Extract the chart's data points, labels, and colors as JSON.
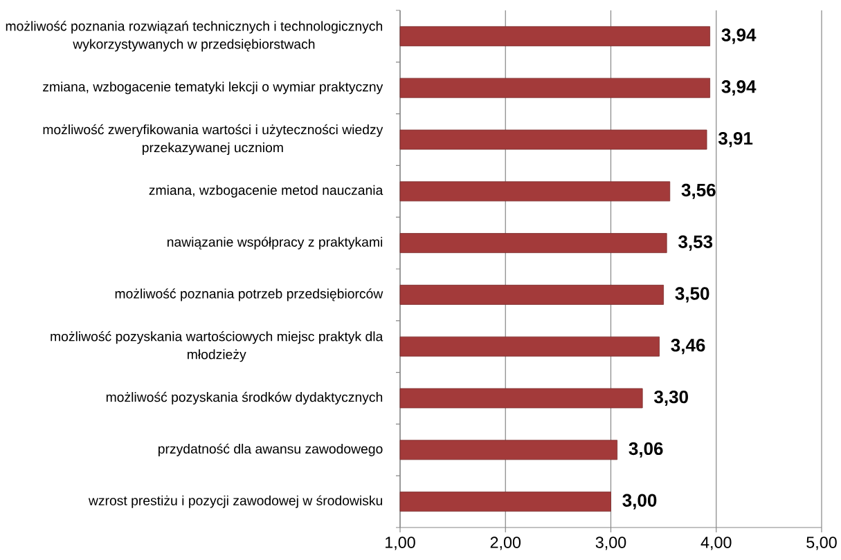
{
  "chart_data": {
    "type": "bar",
    "orientation": "horizontal",
    "categories": [
      "możliwość poznania rozwiązań technicznych i technologicznych wykorzystywanych w przedsiębiorstwach",
      "zmiana, wzbogacenie tematyki lekcji o wymiar praktyczny",
      "możliwość zweryfikowania wartości i użyteczności wiedzy przekazywanej uczniom",
      "zmiana, wzbogacenie metod nauczania",
      "nawiązanie współpracy z praktykami",
      "możliwość poznania potrzeb przedsiębiorców",
      "możliwość pozyskania wartościowych miejsc praktyk dla młodzieży",
      "możliwość pozyskania środków dydaktycznych",
      "przydatność dla awansu zawodowego",
      "wzrost prestiżu i pozycji zawodowej w środowisku"
    ],
    "values": [
      3.94,
      3.94,
      3.91,
      3.56,
      3.53,
      3.5,
      3.46,
      3.3,
      3.06,
      3.0
    ],
    "value_labels": [
      "3,94",
      "3,94",
      "3,91",
      "3,56",
      "3,53",
      "3,50",
      "3,46",
      "3,30",
      "3,06",
      "3,00"
    ],
    "color": "#a33a3a",
    "xlim": [
      1,
      5
    ],
    "xticks": [
      {
        "value": 1,
        "label": "1,00"
      },
      {
        "value": 2,
        "label": "2,00"
      },
      {
        "value": 3,
        "label": "3,00"
      },
      {
        "value": 4,
        "label": "4,00"
      },
      {
        "value": 5,
        "label": "5,00"
      }
    ],
    "grid": "x"
  }
}
